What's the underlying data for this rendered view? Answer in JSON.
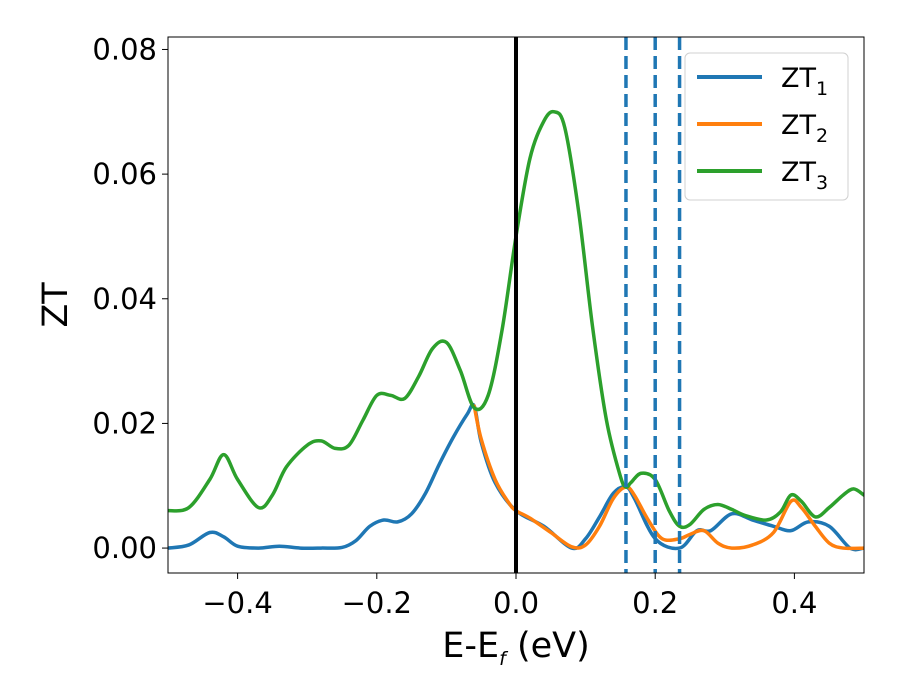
{
  "chart_data": {
    "type": "line",
    "xlabel": {
      "main": "E-E",
      "sub": "f",
      "suffix": " (eV)"
    },
    "ylabel": "ZT",
    "xlim": [
      -0.5,
      0.5
    ],
    "ylim": [
      -0.004,
      0.082
    ],
    "xticks": [
      -0.4,
      -0.2,
      0.0,
      0.2,
      0.4
    ],
    "xtick_labels": [
      "−0.4",
      "−0.2",
      "0.0",
      "0.2",
      "0.4"
    ],
    "yticks": [
      0.0,
      0.02,
      0.04,
      0.06,
      0.08
    ],
    "ytick_labels": [
      "0.00",
      "0.02",
      "0.04",
      "0.06",
      "0.08"
    ],
    "grid": false,
    "legend_position": "top-right",
    "colors": {
      "zt1": "#1f77b4",
      "zt2": "#ff7f0e",
      "zt3": "#2ca02c",
      "fermi": "#000000"
    },
    "vertical_lines": [
      {
        "x": 0.0,
        "style": "solid",
        "color": "#000000"
      },
      {
        "x": 0.158,
        "style": "dashed",
        "color": "#1f77b4"
      },
      {
        "x": 0.2,
        "style": "dashed",
        "color": "#1f77b4"
      },
      {
        "x": 0.235,
        "style": "dashed",
        "color": "#1f77b4"
      }
    ],
    "series": [
      {
        "name": "ZT",
        "sub": "1",
        "color": "#1f77b4",
        "x": [
          -0.5,
          -0.47,
          -0.44,
          -0.42,
          -0.4,
          -0.37,
          -0.34,
          -0.31,
          -0.28,
          -0.25,
          -0.23,
          -0.21,
          -0.19,
          -0.17,
          -0.15,
          -0.13,
          -0.11,
          -0.09,
          -0.07,
          -0.06,
          -0.05,
          -0.03,
          0.0,
          0.04,
          0.08,
          0.1,
          0.12,
          0.14,
          0.158,
          0.17,
          0.2,
          0.235,
          0.26,
          0.28,
          0.31,
          0.34,
          0.37,
          0.395,
          0.42,
          0.45,
          0.48,
          0.5
        ],
        "y": [
          0.0,
          0.0005,
          0.0025,
          0.0018,
          0.0003,
          0.0,
          0.0003,
          0.0,
          0.0,
          0.0001,
          0.0012,
          0.0035,
          0.0045,
          0.0042,
          0.0055,
          0.0088,
          0.0135,
          0.0178,
          0.0215,
          0.0228,
          0.017,
          0.0105,
          0.006,
          0.0035,
          0.0,
          0.0015,
          0.005,
          0.0088,
          0.0098,
          0.008,
          0.0015,
          0.0,
          0.0028,
          0.0028,
          0.0055,
          0.0045,
          0.0035,
          0.0028,
          0.0042,
          0.0035,
          0.0,
          0.0
        ]
      },
      {
        "name": "ZT",
        "sub": "2",
        "color": "#ff7f0e",
        "x": [
          -0.06,
          -0.05,
          -0.03,
          -0.01,
          0.0,
          0.02,
          0.05,
          0.08,
          0.1,
          0.12,
          0.14,
          0.158,
          0.17,
          0.19,
          0.21,
          0.235,
          0.25,
          0.27,
          0.29,
          0.31,
          0.34,
          0.37,
          0.395,
          0.41,
          0.43,
          0.45,
          0.47,
          0.5
        ],
        "y": [
          0.0228,
          0.0175,
          0.011,
          0.0072,
          0.006,
          0.0048,
          0.0025,
          0.0002,
          0.0005,
          0.0035,
          0.008,
          0.0098,
          0.0085,
          0.0045,
          0.0015,
          0.0015,
          0.0022,
          0.0028,
          0.0008,
          0.0,
          0.0005,
          0.0025,
          0.0075,
          0.0065,
          0.0035,
          0.0008,
          0.0,
          0.0
        ]
      },
      {
        "name": "ZT",
        "sub": "3",
        "color": "#2ca02c",
        "x": [
          -0.5,
          -0.47,
          -0.44,
          -0.42,
          -0.4,
          -0.37,
          -0.35,
          -0.33,
          -0.3,
          -0.28,
          -0.26,
          -0.24,
          -0.22,
          -0.2,
          -0.18,
          -0.16,
          -0.14,
          -0.12,
          -0.1,
          -0.08,
          -0.06,
          -0.04,
          -0.02,
          0.0,
          0.02,
          0.04,
          0.055,
          0.07,
          0.09,
          0.11,
          0.13,
          0.15,
          0.158,
          0.165,
          0.18,
          0.2,
          0.22,
          0.235,
          0.25,
          0.27,
          0.29,
          0.31,
          0.33,
          0.36,
          0.38,
          0.395,
          0.41,
          0.43,
          0.45,
          0.47,
          0.485,
          0.5
        ],
        "y": [
          0.006,
          0.0065,
          0.011,
          0.015,
          0.011,
          0.0065,
          0.0085,
          0.013,
          0.0165,
          0.0172,
          0.016,
          0.0165,
          0.0205,
          0.0245,
          0.0245,
          0.024,
          0.0275,
          0.032,
          0.033,
          0.0285,
          0.0225,
          0.0245,
          0.035,
          0.05,
          0.0625,
          0.0685,
          0.07,
          0.0675,
          0.054,
          0.0355,
          0.0205,
          0.0115,
          0.0098,
          0.0105,
          0.012,
          0.011,
          0.006,
          0.0035,
          0.0038,
          0.0062,
          0.007,
          0.0062,
          0.0052,
          0.0045,
          0.0058,
          0.0085,
          0.0075,
          0.005,
          0.0065,
          0.0085,
          0.0095,
          0.0085
        ]
      }
    ]
  }
}
